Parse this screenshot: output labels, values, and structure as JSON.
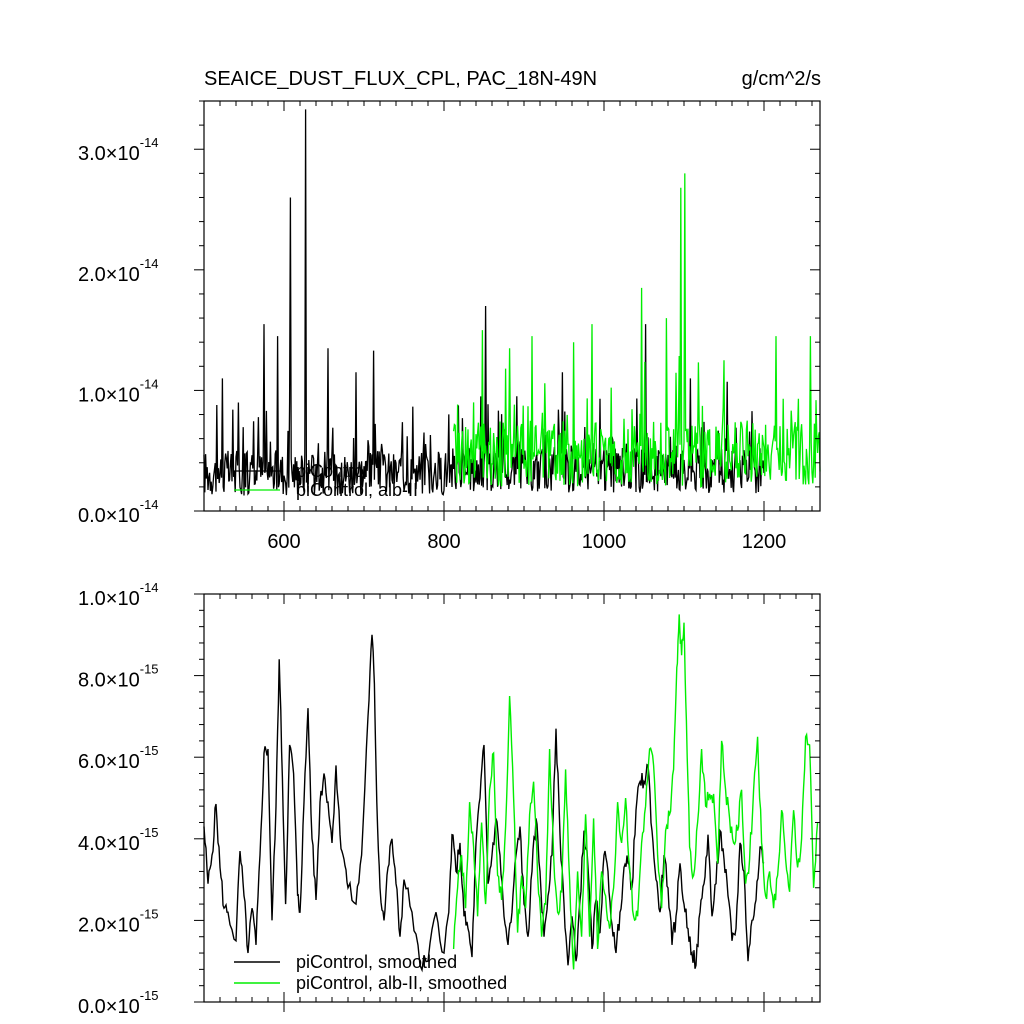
{
  "title_left": "SEAICE_DUST_FLUX_CPL, PAC_18N-49N",
  "units": "g/cm^2/s",
  "colors": {
    "control": "#000000",
    "experiment": "#00ee00"
  },
  "chart_data": [
    {
      "type": "line",
      "panel": "top",
      "title": "SEAICE_DUST_FLUX_CPL, PAC_18N-49N",
      "units_label": "g/cm^2/s",
      "xlim": [
        500,
        1270
      ],
      "ylim": [
        0,
        3.4e-14
      ],
      "x_ticks": [
        600,
        800,
        1000,
        1200
      ],
      "x_tick_labels": [
        "600",
        "800",
        "1000",
        "1200"
      ],
      "y_ticks": [
        0,
        1e-14,
        2e-14,
        3e-14
      ],
      "y_tick_labels": [
        {
          "mant": "0.0",
          "exp": "-14"
        },
        {
          "mant": "1.0",
          "exp": "-14"
        },
        {
          "mant": "2.0",
          "exp": "-14"
        },
        {
          "mant": "3.0",
          "exp": "-14"
        }
      ],
      "series": [
        {
          "name": "piControl",
          "color": "#000000",
          "x_range": [
            500,
            1200
          ],
          "y_scale": 1e-14,
          "description": "noisy annual values, mostly 0.1-0.6 with spikes",
          "spikes": [
            [
              523,
              1.1
            ],
            [
              543,
              0.9
            ],
            [
              575,
              1.55
            ],
            [
              592,
              1.45
            ],
            [
              608,
              2.6
            ],
            [
              627,
              3.33
            ],
            [
              655,
              1.35
            ],
            [
              690,
              1.15
            ],
            [
              712,
              1.33
            ],
            [
              852,
              1.7
            ],
            [
              948,
              1.15
            ],
            [
              1052,
              1.55
            ],
            [
              1108,
              1.1
            ]
          ]
        },
        {
          "name": "piControl, alb-II",
          "color": "#00ee00",
          "x_range": [
            812,
            1270
          ],
          "y_scale": 1e-14,
          "description": "noisy annual values, mostly 0.2-0.8 with spikes",
          "spikes": [
            [
              848,
              1.5
            ],
            [
              882,
              1.35
            ],
            [
              910,
              1.45
            ],
            [
              962,
              1.4
            ],
            [
              985,
              1.55
            ],
            [
              1047,
              1.85
            ],
            [
              1078,
              1.6
            ],
            [
              1096,
              2.68
            ],
            [
              1101,
              2.8
            ],
            [
              1150,
              1.25
            ],
            [
              1215,
              1.45
            ],
            [
              1258,
              1.45
            ]
          ]
        }
      ],
      "legend": {
        "placement": "lower-left",
        "entries": [
          "piControl",
          "piControl, alb-II"
        ]
      }
    },
    {
      "type": "line",
      "panel": "bottom",
      "xlim": [
        500,
        1270
      ],
      "ylim": [
        0,
        1e-14
      ],
      "x_ticks": [
        600,
        800,
        1000,
        1200
      ],
      "y_ticks": [
        0,
        2e-15,
        4e-15,
        6e-15,
        8e-15,
        1e-14
      ],
      "y_tick_labels": [
        {
          "mant": "0.0",
          "exp": "-15"
        },
        {
          "mant": "2.0",
          "exp": "-15"
        },
        {
          "mant": "4.0",
          "exp": "-15"
        },
        {
          "mant": "6.0",
          "exp": "-15"
        },
        {
          "mant": "8.0",
          "exp": "-15"
        },
        {
          "mant": "1.0",
          "exp": "-14"
        }
      ],
      "series": [
        {
          "name": "piControl, smoothed",
          "color": "#000000",
          "y_scale": 1e-15,
          "x": [
            500,
            505,
            510,
            515,
            520,
            525,
            530,
            540,
            545,
            550,
            555,
            560,
            565,
            570,
            575,
            580,
            585,
            590,
            594,
            598,
            602,
            607,
            612,
            617,
            620,
            625,
            630,
            635,
            640,
            645,
            650,
            655,
            660,
            665,
            670,
            675,
            680,
            690,
            697,
            705,
            710,
            713,
            716,
            720,
            725,
            730,
            735,
            740,
            745,
            750,
            760,
            770,
            780,
            790,
            800,
            806,
            810,
            815,
            820,
            825,
            830,
            835,
            840,
            845,
            850,
            855,
            860,
            865,
            870,
            875,
            880,
            885,
            890,
            895,
            900,
            905,
            910,
            915,
            920,
            925,
            930,
            935,
            940,
            945,
            950,
            955,
            960,
            965,
            970,
            975,
            980,
            985,
            990,
            995,
            1000,
            1005,
            1010,
            1015,
            1020,
            1025,
            1030,
            1035,
            1040,
            1045,
            1050,
            1055,
            1060,
            1065,
            1070,
            1075,
            1080,
            1085,
            1090,
            1095,
            1100,
            1105,
            1110,
            1115,
            1120,
            1125,
            1130,
            1135,
            1140,
            1145,
            1150,
            1155,
            1160,
            1165,
            1170,
            1175,
            1180,
            1185,
            1190,
            1195,
            1200
          ],
          "y": [
            4.3,
            2.9,
            3.6,
            4.85,
            3.3,
            2.3,
            2.2,
            1.5,
            3.7,
            2.6,
            1.2,
            2.3,
            1.4,
            3.6,
            6.1,
            6.2,
            2.0,
            4.8,
            8.4,
            5.5,
            2.4,
            6.3,
            5.6,
            2.6,
            2.2,
            4.9,
            7.2,
            4.0,
            2.5,
            4.9,
            5.6,
            4.9,
            3.9,
            5.8,
            4.1,
            3.5,
            2.8,
            2.4,
            3.6,
            7.0,
            9.0,
            7.8,
            4.9,
            2.8,
            2.0,
            3.3,
            4.0,
            2.9,
            1.6,
            3.0,
            2.2,
            0.9,
            1.0,
            2.2,
            1.2,
            2.2,
            4.1,
            3.2,
            3.9,
            2.1,
            1.8,
            1.1,
            3.9,
            5.0,
            6.3,
            2.9,
            3.6,
            4.5,
            3.6,
            2.1,
            1.4,
            2.2,
            3.6,
            4.3,
            2.4,
            1.6,
            3.2,
            4.5,
            3.2,
            1.6,
            2.6,
            3.6,
            6.7,
            4.1,
            2.4,
            0.9,
            2.1,
            1.0,
            2.5,
            4.2,
            3.3,
            1.3,
            2.5,
            1.7,
            3.6,
            3.2,
            1.9,
            1.2,
            2.2,
            3.3,
            3.4,
            2.8,
            4.7,
            5.4,
            5.4,
            5.8,
            4.2,
            3.0,
            2.2,
            3.6,
            2.8,
            1.4,
            2.1,
            3.4,
            2.4,
            1.8,
            1.2,
            0.9,
            2.2,
            2.9,
            4.1,
            2.1,
            2.9,
            4.2,
            3.5,
            2.6,
            1.5,
            1.8,
            3.9,
            3.2,
            1.0,
            2.0,
            2.5,
            3.8,
            3.4
          ]
        },
        {
          "name": "piControl, alb-II, smoothed",
          "color": "#00ee00",
          "y_scale": 1e-15,
          "x": [
            812,
            817,
            822,
            827,
            832,
            837,
            842,
            847,
            852,
            857,
            862,
            867,
            872,
            877,
            882,
            887,
            892,
            897,
            902,
            907,
            912,
            917,
            922,
            927,
            932,
            937,
            942,
            947,
            952,
            957,
            962,
            967,
            972,
            977,
            982,
            987,
            992,
            997,
            1002,
            1007,
            1012,
            1017,
            1022,
            1027,
            1032,
            1037,
            1042,
            1047,
            1052,
            1057,
            1062,
            1067,
            1072,
            1077,
            1082,
            1087,
            1091,
            1094,
            1097,
            1100,
            1103,
            1107,
            1112,
            1117,
            1122,
            1127,
            1132,
            1137,
            1142,
            1147,
            1152,
            1157,
            1162,
            1167,
            1172,
            1177,
            1182,
            1187,
            1192,
            1197,
            1202,
            1207,
            1212,
            1217,
            1222,
            1227,
            1232,
            1237,
            1242,
            1247,
            1252,
            1257,
            1262,
            1267
          ],
          "y": [
            1.3,
            2.8,
            3.6,
            2.3,
            4.9,
            3.8,
            2.1,
            4.4,
            2.4,
            5.2,
            6.1,
            3.1,
            2.5,
            4.3,
            7.5,
            5.0,
            1.7,
            3.1,
            2.3,
            4.6,
            5.4,
            3.1,
            1.6,
            2.4,
            6.2,
            3.6,
            2.2,
            2.7,
            5.7,
            3.0,
            0.8,
            3.2,
            1.6,
            4.6,
            1.6,
            4.5,
            1.3,
            3.2,
            2.6,
            1.8,
            2.8,
            4.9,
            3.9,
            5.0,
            3.3,
            2.1,
            2.1,
            3.9,
            4.8,
            6.2,
            5.8,
            3.6,
            2.3,
            4.2,
            4.6,
            5.7,
            8.2,
            9.5,
            8.5,
            9.3,
            6.9,
            3.8,
            3.1,
            4.4,
            6.2,
            4.8,
            5.1,
            5.1,
            3.4,
            6.4,
            5.2,
            4.5,
            3.9,
            4.2,
            5.2,
            2.9,
            3.5,
            5.2,
            6.5,
            3.9,
            2.6,
            3.2,
            2.3,
            3.1,
            4.7,
            3.5,
            2.7,
            4.7,
            3.3,
            4.0,
            6.5,
            6.3,
            2.8,
            4.4
          ]
        }
      ],
      "legend": {
        "placement": "lower-left",
        "entries": [
          "piControl, smoothed",
          "piControl, alb-II, smoothed"
        ]
      }
    }
  ]
}
